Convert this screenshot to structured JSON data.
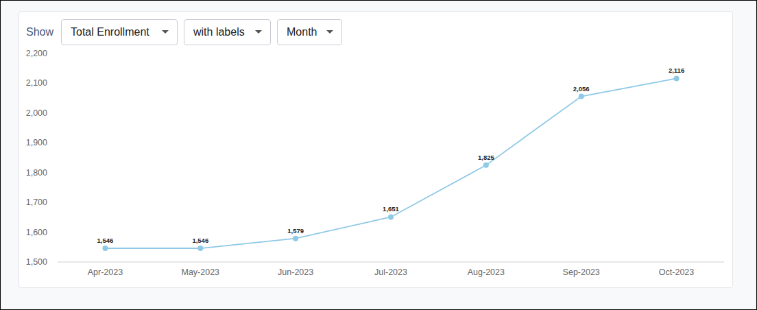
{
  "controls": {
    "label": "Show",
    "dropdowns": [
      "Total Enrollment",
      "with labels",
      "Month"
    ]
  },
  "chart_data": {
    "type": "line",
    "categories": [
      "Apr-2023",
      "May-2023",
      "Jun-2023",
      "Jul-2023",
      "Aug-2023",
      "Sep-2023",
      "Oct-2023"
    ],
    "values": [
      1546,
      1546,
      1579,
      1651,
      1825,
      2056,
      2116
    ],
    "value_labels": [
      "1,546",
      "1,546",
      "1,579",
      "1,651",
      "1,825",
      "2,056",
      "2,116"
    ],
    "color": "#8ec9e6",
    "marker": "circle",
    "line_style": "solid",
    "data_labels": true,
    "grid": false,
    "ylim": [
      1500,
      2200
    ],
    "yticks": [
      {
        "value": 1500,
        "label": "1,500"
      },
      {
        "value": 1600,
        "label": "1,600"
      },
      {
        "value": 1700,
        "label": "1,700"
      },
      {
        "value": 1800,
        "label": "1,800"
      },
      {
        "value": 1900,
        "label": "1,900"
      },
      {
        "value": 2000,
        "label": "2,000"
      },
      {
        "value": 2100,
        "label": "2,100"
      },
      {
        "value": 2200,
        "label": "2,200"
      }
    ]
  }
}
